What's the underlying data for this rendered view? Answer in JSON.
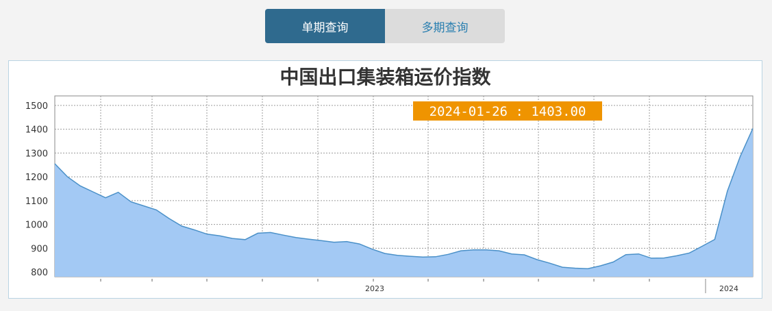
{
  "tabs": [
    {
      "label": "单期查询",
      "active": true
    },
    {
      "label": "多期查询",
      "active": false
    }
  ],
  "tooltip": {
    "date": "2024-01-26",
    "value": "1403.00",
    "separator": " : "
  },
  "colors": {
    "area_fill": "#a3c9f4",
    "line": "#4a90c8",
    "tooltip_bg": "#ef9400",
    "tab_active": "#2f6a8e"
  },
  "chart_data": {
    "type": "area",
    "title": "中国出口集装箱运价指数",
    "ylim": [
      780,
      1540
    ],
    "yticks": [
      800,
      900,
      1000,
      1100,
      1200,
      1300,
      1400,
      1500
    ],
    "xtick_labels": [
      "2023",
      "2024"
    ],
    "grid": true,
    "series": [
      {
        "values": [
          1255,
          1200,
          1162,
          1137,
          1112,
          1135,
          1095,
          1078,
          1061,
          1025,
          993,
          977,
          959,
          952,
          941,
          936,
          963,
          966,
          955,
          945,
          938,
          932,
          925,
          928,
          918,
          896,
          878,
          870,
          866,
          863,
          864,
          874,
          889,
          893,
          893,
          889,
          876,
          872,
          852,
          837,
          820,
          816,
          814,
          826,
          842,
          873,
          876,
          858,
          859,
          868,
          880,
          908,
          937,
          1140,
          1285,
          1403
        ]
      }
    ]
  }
}
